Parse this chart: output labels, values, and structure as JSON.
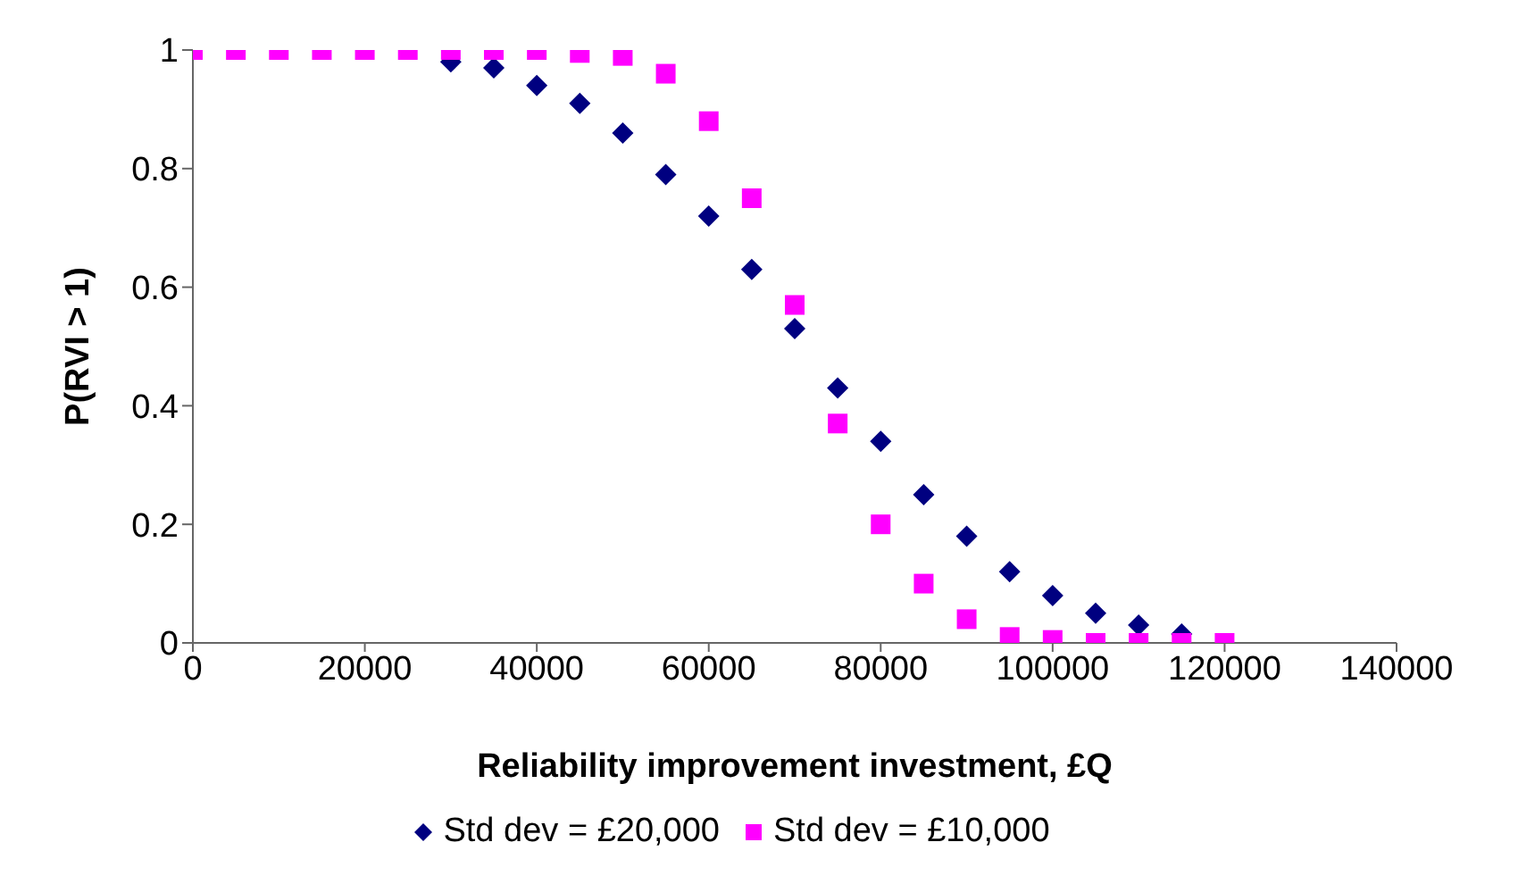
{
  "chart_data": {
    "type": "scatter",
    "xlabel": "Reliability improvement investment, £Q",
    "ylabel": "P(RVI > 1)",
    "x": [
      0,
      5000,
      10000,
      15000,
      20000,
      25000,
      30000,
      35000,
      40000,
      45000,
      50000,
      55000,
      60000,
      65000,
      70000,
      75000,
      80000,
      85000,
      90000,
      95000,
      100000,
      105000,
      110000,
      115000,
      120000
    ],
    "series": [
      {
        "name": "Std dev = £20,000",
        "color": "#000080",
        "marker": "diamond",
        "values": [
          null,
          null,
          null,
          null,
          null,
          null,
          0.98,
          0.97,
          0.94,
          0.91,
          0.86,
          0.79,
          0.72,
          0.63,
          0.53,
          0.43,
          0.34,
          0.25,
          0.18,
          0.12,
          0.08,
          0.05,
          0.03,
          0.015,
          null
        ]
      },
      {
        "name": "Std dev = £10,000",
        "color": "#ff00ff",
        "marker": "square",
        "values": [
          1,
          1,
          1,
          1,
          1,
          1,
          1,
          1,
          1,
          0.995,
          0.99,
          0.96,
          0.88,
          0.75,
          0.57,
          0.37,
          0.2,
          0.1,
          0.04,
          0.01,
          0.005,
          0,
          0,
          0,
          0
        ]
      }
    ],
    "xlim": [
      0,
      140000
    ],
    "xticks": [
      0,
      20000,
      40000,
      60000,
      80000,
      100000,
      120000,
      140000
    ],
    "ylim": [
      0,
      1
    ],
    "yticks": [
      0,
      0.2,
      0.4,
      0.6,
      0.8,
      1
    ],
    "grid": false,
    "legend": "bottom"
  }
}
